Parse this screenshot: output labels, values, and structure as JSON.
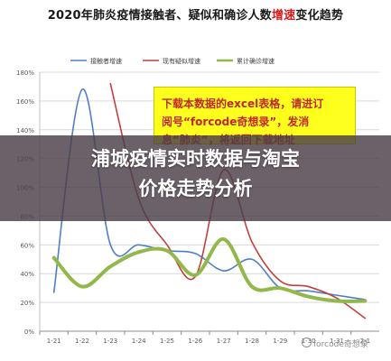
{
  "page": {
    "title_part1": "2020年肺炎疫情接触者、疑似和确诊人数",
    "title_highlight": "增速",
    "title_part2": "变化趋势"
  },
  "chart_data": {
    "type": "line",
    "title": "2020年肺炎疫情接触者、疑似和确诊人数增速变化趋势",
    "categories": [
      "1-21",
      "1-22",
      "1-23",
      "1-24",
      "1-25",
      "1-26",
      "1-27",
      "1-28",
      "1-29",
      "1-30",
      "1-31",
      "2-1"
    ],
    "y_ticks": [
      "0%",
      "20%",
      "40%",
      "60%",
      "80%",
      "100%",
      "120%",
      "140%",
      "160%",
      "180%"
    ],
    "ylim": [
      0,
      180
    ],
    "grid": true,
    "legend_position": "top",
    "series": [
      {
        "name": "接触者增速",
        "color": "#4f7ec8",
        "stroke_width": 1.6,
        "values": [
          27,
          168,
          60,
          60,
          56,
          54,
          42,
          50,
          30,
          28,
          25,
          22
        ]
      },
      {
        "name": "现有疑似增速",
        "color": "#c0413c",
        "stroke_width": 1.6,
        "values": [
          null,
          null,
          172,
          92,
          60,
          38,
          112,
          62,
          35,
          31,
          23,
          9
        ]
      },
      {
        "name": "累计确诊增速",
        "color": "#92b84a",
        "stroke_width": 4,
        "values": [
          51,
          31,
          45,
          55,
          56,
          39,
          64,
          31,
          30,
          24,
          21,
          21
        ]
      }
    ]
  },
  "notice": {
    "line1": "下载本数据的excel表格，请进订",
    "line2": "阅号“forcode奇想录”，发消",
    "line3": "息“肺炎”，将返回下载地址"
  },
  "overlay": {
    "line1": "浦城疫情实时数据与淘宝",
    "line2": "价格走势分析"
  },
  "watermark": {
    "text": "forcode奇想录"
  }
}
